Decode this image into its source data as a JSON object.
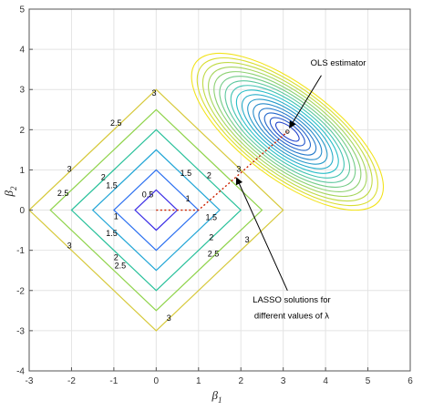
{
  "chart_data": {
    "type": "line",
    "title": "",
    "xlabel_base": "β",
    "xlabel_sub": "1",
    "ylabel_base": "β",
    "ylabel_sub": "2",
    "xlim": [
      -3,
      6
    ],
    "ylim": [
      -4,
      5
    ],
    "x_ticks": [
      -3,
      -2,
      -1,
      0,
      1,
      2,
      3,
      4,
      5,
      6
    ],
    "y_ticks": [
      -4,
      -3,
      -2,
      -1,
      0,
      1,
      2,
      3,
      4,
      5
    ],
    "grid": true,
    "lasso_contours": {
      "levels": [
        0.5,
        1,
        1.5,
        2,
        2.5,
        3
      ],
      "colors": [
        "#3b2ee6",
        "#2a6ff0",
        "#22a6d6",
        "#27c09a",
        "#8fd34a",
        "#d6c93a"
      ],
      "labels": [
        {
          "text": "0.5",
          "x": -0.2,
          "y": 0.32
        },
        {
          "text": "1",
          "x": -0.95,
          "y": -0.22
        },
        {
          "text": "1",
          "x": 0.75,
          "y": 0.22
        },
        {
          "text": "1.5",
          "x": -1.05,
          "y": 0.55
        },
        {
          "text": "1.5",
          "x": -1.05,
          "y": -0.65
        },
        {
          "text": "1.5",
          "x": 0.7,
          "y": 0.85
        },
        {
          "text": "1.5",
          "x": 1.3,
          "y": -0.25
        },
        {
          "text": "2",
          "x": -1.25,
          "y": 0.75
        },
        {
          "text": "2",
          "x": -0.95,
          "y": -1.25
        },
        {
          "text": "2",
          "x": 1.25,
          "y": 0.8
        },
        {
          "text": "2",
          "x": 1.3,
          "y": -0.75
        },
        {
          "text": "2.5",
          "x": -2.2,
          "y": 0.35
        },
        {
          "text": "2.5",
          "x": -0.95,
          "y": 2.1
        },
        {
          "text": "2.5",
          "x": -0.85,
          "y": -1.45
        },
        {
          "text": "2.5",
          "x": 1.35,
          "y": -1.15
        },
        {
          "text": "3",
          "x": -2.05,
          "y": 0.95
        },
        {
          "text": "3",
          "x": -2.05,
          "y": -0.95
        },
        {
          "text": "3",
          "x": -0.05,
          "y": 2.85
        },
        {
          "text": "3",
          "x": 0.3,
          "y": -2.75
        },
        {
          "text": "3",
          "x": 1.95,
          "y": 0.95
        },
        {
          "text": "3",
          "x": 2.15,
          "y": -0.8
        }
      ]
    },
    "ols_contours": {
      "center": [
        3.1,
        1.95
      ],
      "count": 16,
      "color_low": "#2233cc",
      "color_high": "#f2e31b"
    },
    "lasso_path": {
      "color": "#cc2200",
      "points": [
        [
          0,
          0
        ],
        [
          1,
          0
        ],
        [
          3.1,
          1.95
        ]
      ]
    },
    "annotations": [
      {
        "text": "OLS estimator",
        "x": 4.3,
        "y": 3.6
      },
      {
        "text": "LASSO solutions for",
        "x": 3.2,
        "y": -2.3
      },
      {
        "text": "different values of λ",
        "x": 3.2,
        "y": -2.7
      }
    ]
  }
}
